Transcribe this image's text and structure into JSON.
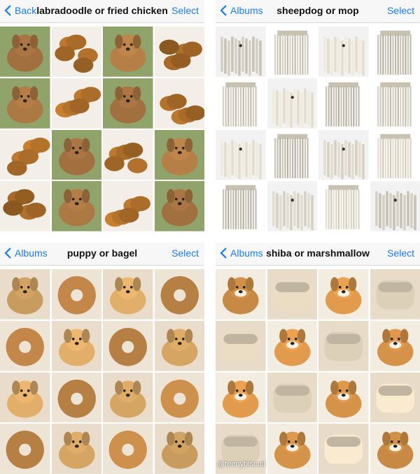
{
  "panels": [
    {
      "back_label": "Back",
      "title": "labradoodle or fried chicken",
      "select_label": "Select",
      "tiles": [
        "labradoodle",
        "fried-chicken",
        "labradoodle",
        "fried-chicken",
        "labradoodle",
        "fried-chicken",
        "labradoodle",
        "fried-chicken",
        "fried-chicken",
        "labradoodle",
        "fried-chicken",
        "labradoodle",
        "fried-chicken",
        "labradoodle",
        "fried-chicken",
        "labradoodle"
      ]
    },
    {
      "back_label": "Albums",
      "title": "sheepdog or mop",
      "select_label": "Select",
      "tiles": [
        "sheepdog",
        "mop",
        "sheepdog",
        "mop",
        "mop",
        "sheepdog",
        "mop",
        "mop",
        "sheepdog",
        "mop",
        "sheepdog",
        "mop",
        "mop",
        "sheepdog",
        "mop",
        "sheepdog"
      ]
    },
    {
      "back_label": "Albums",
      "title": "puppy or bagel",
      "select_label": "Select",
      "tiles": [
        "puppy",
        "bagel",
        "puppy",
        "bagel",
        "bagel",
        "puppy",
        "bagel",
        "puppy",
        "puppy",
        "bagel",
        "puppy",
        "bagel",
        "bagel",
        "puppy",
        "bagel",
        "puppy"
      ]
    },
    {
      "back_label": "Albums",
      "title": "shiba or marshmallow",
      "select_label": "Select",
      "tiles": [
        "shiba",
        "marshmallow",
        "shiba",
        "marshmallow",
        "marshmallow",
        "shiba",
        "marshmallow",
        "shiba",
        "shiba",
        "marshmallow",
        "shiba",
        "marshmallow",
        "marshmallow",
        "shiba",
        "marshmallow",
        "shiba"
      ]
    }
  ],
  "credit": "@teenybiscuit",
  "colors": {
    "accent": "#1a7cf5",
    "labradoodle": "#b07a45",
    "fried-chicken": "#c07a2e",
    "sheepdog": "#e8e2d4",
    "mop": "#ddd6c6",
    "puppy": "#d9a866",
    "bagel": "#c68a4a",
    "shiba": "#d9954a",
    "marshmallow": "#f0e2c8"
  }
}
